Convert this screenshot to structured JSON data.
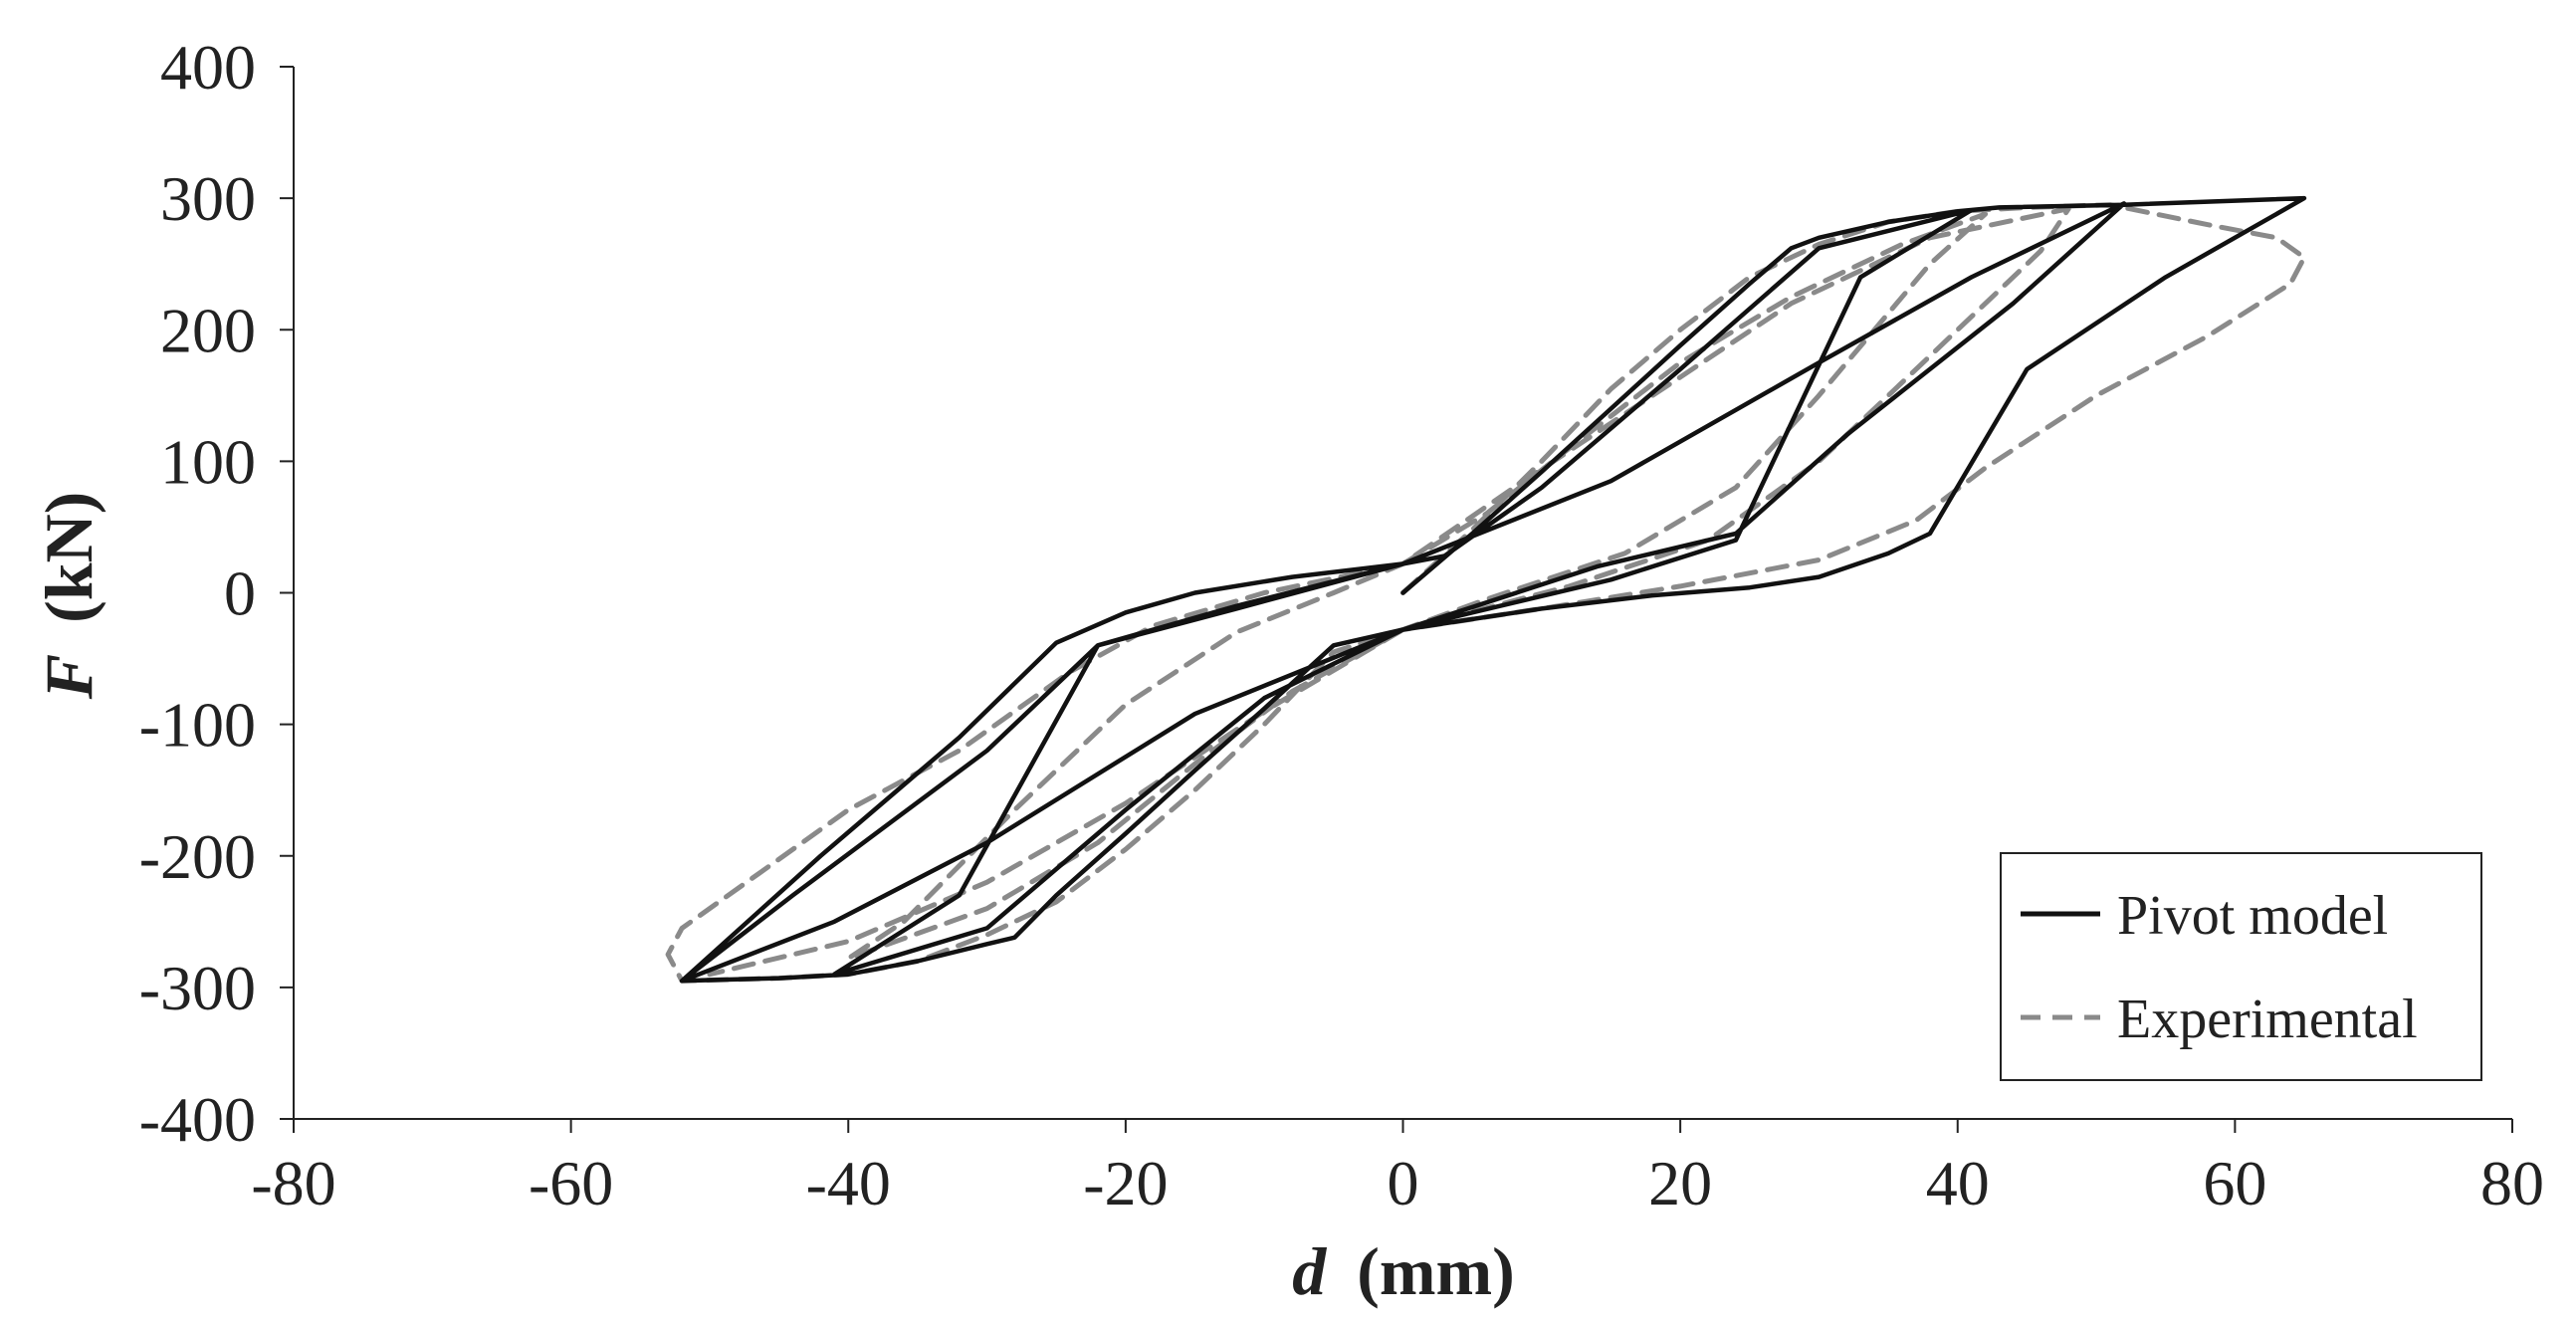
{
  "chart_data": {
    "type": "line",
    "xlabel_var": "d",
    "xlabel_unit": "(mm)",
    "ylabel_var": "F",
    "ylabel_unit": "(kN)",
    "xlim": [
      -80,
      80
    ],
    "ylim": [
      -400,
      400
    ],
    "x_ticks": [
      -80,
      -60,
      -40,
      -20,
      0,
      20,
      40,
      60,
      80
    ],
    "y_ticks": [
      400,
      300,
      200,
      100,
      0,
      -100,
      -200,
      -300,
      -400
    ],
    "grid": false,
    "legend_position": "bottom-right",
    "series": [
      {
        "name": "Pivot model",
        "style": "solid",
        "color": "#111111",
        "points": [
          [
            0,
            0
          ],
          [
            5,
            45
          ],
          [
            10,
            92
          ],
          [
            15,
            140
          ],
          [
            20,
            188
          ],
          [
            25,
            235
          ],
          [
            28,
            262
          ],
          [
            30,
            270
          ],
          [
            35,
            282
          ],
          [
            40,
            290
          ],
          [
            43,
            293
          ],
          [
            52,
            295
          ],
          [
            65,
            300
          ],
          [
            55,
            240
          ],
          [
            45,
            170
          ],
          [
            38,
            45
          ],
          [
            35,
            30
          ],
          [
            30,
            12
          ],
          [
            25,
            4
          ],
          [
            18,
            -2
          ],
          [
            10,
            -12
          ],
          [
            0,
            -28
          ],
          [
            -5,
            -40
          ],
          [
            -10,
            -88
          ],
          [
            -15,
            -135
          ],
          [
            -20,
            -183
          ],
          [
            -25,
            -230
          ],
          [
            -28,
            -262
          ],
          [
            -30,
            -267
          ],
          [
            -35,
            -280
          ],
          [
            -40,
            -290
          ],
          [
            -45,
            -293
          ],
          [
            -52,
            -295
          ],
          [
            -42,
            -200
          ],
          [
            -32,
            -110
          ],
          [
            -25,
            -38
          ],
          [
            -20,
            -15
          ],
          [
            -15,
            0
          ],
          [
            -8,
            12
          ],
          [
            0,
            22
          ],
          [
            3,
            28
          ],
          [
            10,
            80
          ],
          [
            20,
            170
          ],
          [
            30,
            262
          ],
          [
            41,
            291
          ],
          [
            33,
            240
          ],
          [
            24,
            40
          ],
          [
            15,
            10
          ],
          [
            5,
            -15
          ],
          [
            0,
            -28
          ],
          [
            -10,
            -80
          ],
          [
            -20,
            -165
          ],
          [
            -30,
            -255
          ],
          [
            -41,
            -290
          ],
          [
            -32,
            -230
          ],
          [
            -22,
            -40
          ],
          [
            -12,
            -10
          ],
          [
            0,
            22
          ],
          [
            15,
            85
          ],
          [
            30,
            175
          ],
          [
            41,
            240
          ],
          [
            52,
            296
          ],
          [
            44,
            220
          ],
          [
            32,
            120
          ],
          [
            24,
            45
          ],
          [
            14,
            20
          ],
          [
            0,
            -28
          ],
          [
            -15,
            -92
          ],
          [
            -30,
            -190
          ],
          [
            -41,
            -250
          ],
          [
            -52,
            -295
          ],
          [
            -44,
            -230
          ],
          [
            -30,
            -120
          ],
          [
            -22,
            -40
          ],
          [
            -12,
            -12
          ],
          [
            0,
            22
          ]
        ]
      },
      {
        "name": "Experimental",
        "style": "dashed",
        "color": "#8a8a8a",
        "points": [
          [
            0,
            0
          ],
          [
            5,
            48
          ],
          [
            10,
            100
          ],
          [
            15,
            155
          ],
          [
            20,
            200
          ],
          [
            25,
            240
          ],
          [
            30,
            265
          ],
          [
            35,
            282
          ],
          [
            40,
            290
          ],
          [
            45,
            293
          ],
          [
            51,
            295
          ],
          [
            58,
            280
          ],
          [
            63,
            270
          ],
          [
            65,
            255
          ],
          [
            64,
            235
          ],
          [
            58,
            195
          ],
          [
            50,
            150
          ],
          [
            42,
            95
          ],
          [
            37,
            55
          ],
          [
            30,
            25
          ],
          [
            20,
            5
          ],
          [
            10,
            -12
          ],
          [
            0,
            -28
          ],
          [
            -5,
            -45
          ],
          [
            -10,
            -100
          ],
          [
            -15,
            -150
          ],
          [
            -20,
            -195
          ],
          [
            -25,
            -235
          ],
          [
            -30,
            -260
          ],
          [
            -35,
            -280
          ],
          [
            -40,
            -290
          ],
          [
            -45,
            -293
          ],
          [
            -52,
            -295
          ],
          [
            -53,
            -275
          ],
          [
            -52,
            -255
          ],
          [
            -46,
            -210
          ],
          [
            -40,
            -165
          ],
          [
            -32,
            -120
          ],
          [
            -24,
            -60
          ],
          [
            -18,
            -25
          ],
          [
            -10,
            0
          ],
          [
            0,
            22
          ],
          [
            6,
            60
          ],
          [
            12,
            110
          ],
          [
            20,
            175
          ],
          [
            28,
            225
          ],
          [
            36,
            265
          ],
          [
            42,
            288
          ],
          [
            38,
            250
          ],
          [
            30,
            150
          ],
          [
            24,
            80
          ],
          [
            16,
            30
          ],
          [
            6,
            -5
          ],
          [
            0,
            -28
          ],
          [
            -8,
            -75
          ],
          [
            -15,
            -130
          ],
          [
            -22,
            -190
          ],
          [
            -30,
            -240
          ],
          [
            -40,
            -278
          ],
          [
            -36,
            -250
          ],
          [
            -28,
            -165
          ],
          [
            -20,
            -85
          ],
          [
            -12,
            -30
          ],
          [
            -5,
            0
          ],
          [
            0,
            22
          ],
          [
            8,
            80
          ],
          [
            18,
            150
          ],
          [
            28,
            220
          ],
          [
            38,
            270
          ],
          [
            48,
            292
          ],
          [
            46,
            260
          ],
          [
            38,
            180
          ],
          [
            30,
            100
          ],
          [
            22,
            40
          ],
          [
            12,
            5
          ],
          [
            0,
            -28
          ],
          [
            -10,
            -90
          ],
          [
            -20,
            -160
          ],
          [
            -30,
            -220
          ],
          [
            -40,
            -265
          ],
          [
            -50,
            -290
          ]
        ]
      }
    ]
  }
}
